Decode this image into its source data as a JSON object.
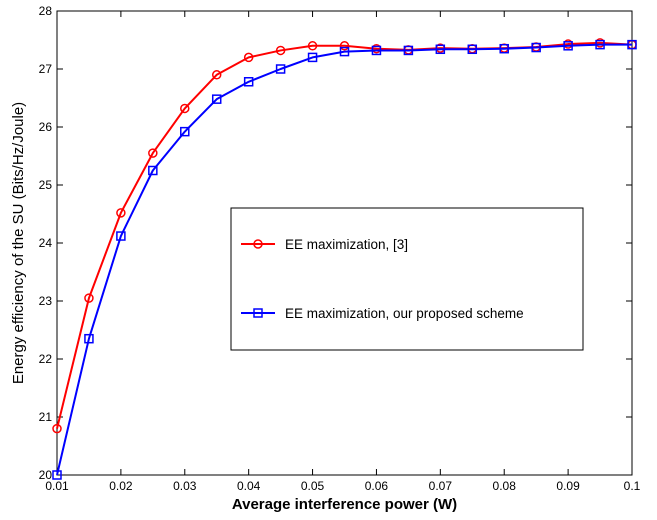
{
  "chart_data": {
    "type": "line",
    "xlabel": "Average interference power (W)",
    "ylabel": "Energy efficiency of the SU (Bits/Hz/Joule)",
    "xlim": [
      0.01,
      0.1
    ],
    "ylim": [
      20,
      28
    ],
    "x_ticks": [
      "0.01",
      "0.02",
      "0.03",
      "0.04",
      "0.05",
      "0.06",
      "0.07",
      "0.08",
      "0.09",
      "0.1"
    ],
    "y_ticks": [
      "20",
      "21",
      "22",
      "23",
      "24",
      "25",
      "26",
      "27",
      "28"
    ],
    "grid": false,
    "legend_position": "center-right",
    "series": [
      {
        "name": "EE maximization, [3]",
        "color": "#ff0000",
        "marker": "circle",
        "x": [
          0.01,
          0.015,
          0.02,
          0.025,
          0.03,
          0.035,
          0.04,
          0.045,
          0.05,
          0.055,
          0.06,
          0.065,
          0.07,
          0.075,
          0.08,
          0.085,
          0.09,
          0.095,
          0.1
        ],
        "values": [
          20.8,
          23.05,
          24.52,
          25.55,
          26.32,
          26.9,
          27.2,
          27.32,
          27.4,
          27.4,
          27.35,
          27.33,
          27.36,
          27.35,
          27.36,
          27.38,
          27.43,
          27.45,
          27.42
        ]
      },
      {
        "name": "EE maximization, our proposed scheme",
        "color": "#0000ff",
        "marker": "square",
        "x": [
          0.01,
          0.015,
          0.02,
          0.025,
          0.03,
          0.035,
          0.04,
          0.045,
          0.05,
          0.055,
          0.06,
          0.065,
          0.07,
          0.075,
          0.08,
          0.085,
          0.09,
          0.095,
          0.1
        ],
        "values": [
          20.0,
          22.35,
          24.12,
          25.25,
          25.92,
          26.48,
          26.78,
          27.0,
          27.2,
          27.3,
          27.32,
          27.32,
          27.34,
          27.34,
          27.35,
          27.37,
          27.4,
          27.42,
          27.42
        ]
      }
    ]
  }
}
